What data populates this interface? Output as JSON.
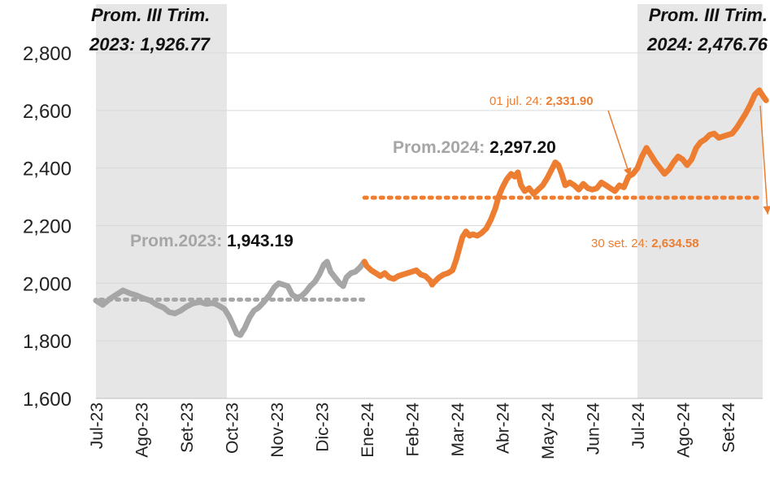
{
  "chart_data": {
    "type": "line",
    "title": "",
    "xlabel": "",
    "ylabel": "",
    "ylim": [
      1600,
      2800
    ],
    "yticks": [
      "1,600",
      "1,800",
      "2,000",
      "2,200",
      "2,400",
      "2,600",
      "2,800"
    ],
    "ytick_values": [
      1600,
      1800,
      2000,
      2200,
      2400,
      2600,
      2800
    ],
    "categories": [
      "Jul-23",
      "Ago-23",
      "Set-23",
      "Oct-23",
      "Nov-23",
      "Dic-23",
      "Ene-24",
      "Feb-24",
      "Mar-24",
      "Abr-24",
      "May-24",
      "Jun-24",
      "Jul-24",
      "Ago-24",
      "Set-24"
    ],
    "colors": {
      "s2023": "#a6a6a6",
      "s2024": "#ed7d31",
      "band": "#e6e6e6",
      "grid": "#d9d9d9"
    },
    "series": [
      {
        "name": "2023",
        "color": "#a6a6a6",
        "points": [
          [
            0.0,
            1940
          ],
          [
            0.15,
            1925
          ],
          [
            0.3,
            1945
          ],
          [
            0.45,
            1960
          ],
          [
            0.6,
            1975
          ],
          [
            0.75,
            1965
          ],
          [
            0.9,
            1958
          ],
          [
            1.05,
            1948
          ],
          [
            1.2,
            1940
          ],
          [
            1.35,
            1925
          ],
          [
            1.5,
            1915
          ],
          [
            1.62,
            1900
          ],
          [
            1.75,
            1895
          ],
          [
            1.88,
            1905
          ],
          [
            2.0,
            1918
          ],
          [
            2.15,
            1930
          ],
          [
            2.3,
            1935
          ],
          [
            2.45,
            1928
          ],
          [
            2.6,
            1932
          ],
          [
            2.75,
            1920
          ],
          [
            2.85,
            1910
          ],
          [
            2.95,
            1885
          ],
          [
            3.05,
            1850
          ],
          [
            3.12,
            1825
          ],
          [
            3.2,
            1820
          ],
          [
            3.3,
            1845
          ],
          [
            3.4,
            1880
          ],
          [
            3.5,
            1905
          ],
          [
            3.6,
            1915
          ],
          [
            3.72,
            1935
          ],
          [
            3.85,
            1960
          ],
          [
            3.95,
            1985
          ],
          [
            4.05,
            2000
          ],
          [
            4.15,
            1995
          ],
          [
            4.25,
            1990
          ],
          [
            4.35,
            1960
          ],
          [
            4.45,
            1950
          ],
          [
            4.55,
            1955
          ],
          [
            4.65,
            1970
          ],
          [
            4.75,
            1990
          ],
          [
            4.85,
            2005
          ],
          [
            4.95,
            2030
          ],
          [
            5.05,
            2065
          ],
          [
            5.12,
            2075
          ],
          [
            5.2,
            2040
          ],
          [
            5.3,
            2020
          ],
          [
            5.4,
            2000
          ],
          [
            5.48,
            1990
          ],
          [
            5.55,
            2020
          ],
          [
            5.65,
            2035
          ],
          [
            5.75,
            2040
          ],
          [
            5.85,
            2055
          ],
          [
            5.95,
            2075
          ]
        ]
      },
      {
        "name": "2024",
        "color": "#ed7d31",
        "points": [
          [
            5.95,
            2075
          ],
          [
            6.0,
            2060
          ],
          [
            6.1,
            2045
          ],
          [
            6.2,
            2035
          ],
          [
            6.3,
            2025
          ],
          [
            6.4,
            2035
          ],
          [
            6.5,
            2020
          ],
          [
            6.6,
            2015
          ],
          [
            6.7,
            2025
          ],
          [
            6.8,
            2030
          ],
          [
            6.9,
            2035
          ],
          [
            7.0,
            2040
          ],
          [
            7.1,
            2045
          ],
          [
            7.2,
            2030
          ],
          [
            7.3,
            2025
          ],
          [
            7.4,
            2010
          ],
          [
            7.45,
            1995
          ],
          [
            7.5,
            2005
          ],
          [
            7.6,
            2020
          ],
          [
            7.7,
            2030
          ],
          [
            7.8,
            2035
          ],
          [
            7.9,
            2045
          ],
          [
            7.98,
            2080
          ],
          [
            8.05,
            2120
          ],
          [
            8.12,
            2160
          ],
          [
            8.2,
            2180
          ],
          [
            8.28,
            2165
          ],
          [
            8.35,
            2170
          ],
          [
            8.45,
            2165
          ],
          [
            8.55,
            2175
          ],
          [
            8.65,
            2190
          ],
          [
            8.75,
            2220
          ],
          [
            8.85,
            2260
          ],
          [
            8.92,
            2300
          ],
          [
            9.0,
            2330
          ],
          [
            9.1,
            2360
          ],
          [
            9.2,
            2380
          ],
          [
            9.28,
            2370
          ],
          [
            9.35,
            2385
          ],
          [
            9.42,
            2340
          ],
          [
            9.5,
            2320
          ],
          [
            9.6,
            2330
          ],
          [
            9.7,
            2310
          ],
          [
            9.8,
            2325
          ],
          [
            9.9,
            2340
          ],
          [
            10.0,
            2365
          ],
          [
            10.1,
            2395
          ],
          [
            10.18,
            2420
          ],
          [
            10.25,
            2410
          ],
          [
            10.32,
            2380
          ],
          [
            10.4,
            2340
          ],
          [
            10.5,
            2350
          ],
          [
            10.6,
            2340
          ],
          [
            10.7,
            2325
          ],
          [
            10.8,
            2345
          ],
          [
            10.9,
            2330
          ],
          [
            11.0,
            2325
          ],
          [
            11.1,
            2330
          ],
          [
            11.2,
            2350
          ],
          [
            11.3,
            2340
          ],
          [
            11.4,
            2330
          ],
          [
            11.5,
            2320
          ],
          [
            11.6,
            2340
          ],
          [
            11.7,
            2333
          ],
          [
            11.8,
            2370
          ],
          [
            11.9,
            2380
          ],
          [
            12.0,
            2400
          ],
          [
            12.1,
            2440
          ],
          [
            12.2,
            2470
          ],
          [
            12.3,
            2445
          ],
          [
            12.4,
            2420
          ],
          [
            12.5,
            2400
          ],
          [
            12.6,
            2380
          ],
          [
            12.7,
            2395
          ],
          [
            12.8,
            2420
          ],
          [
            12.9,
            2440
          ],
          [
            13.0,
            2430
          ],
          [
            13.1,
            2410
          ],
          [
            13.2,
            2430
          ],
          [
            13.3,
            2470
          ],
          [
            13.4,
            2490
          ],
          [
            13.5,
            2500
          ],
          [
            13.6,
            2515
          ],
          [
            13.7,
            2520
          ],
          [
            13.8,
            2505
          ],
          [
            13.9,
            2510
          ],
          [
            14.0,
            2515
          ],
          [
            14.1,
            2520
          ],
          [
            14.2,
            2540
          ],
          [
            14.3,
            2565
          ],
          [
            14.4,
            2590
          ],
          [
            14.5,
            2620
          ],
          [
            14.6,
            2655
          ],
          [
            14.7,
            2670
          ],
          [
            14.78,
            2650
          ],
          [
            14.85,
            2635
          ]
        ]
      }
    ],
    "averages": [
      {
        "label": "Prom.2023: ",
        "value_text": "1,943.19",
        "value": 1943.19,
        "from": 0.1,
        "to": 5.95
      },
      {
        "label": "Prom.2024: ",
        "value_text": "2,297.20",
        "value": 2297.2,
        "from": 5.95,
        "to": 15.2
      }
    ],
    "quarter_bands": [
      {
        "from": 0,
        "to": 2.9,
        "line1": "Prom. III Trim.",
        "line2": "2023: 1,926.77"
      },
      {
        "from": 12,
        "to": 15.2,
        "line1": "Prom. III Trim.",
        "line2": "2024: 2,476.76"
      }
    ],
    "annotations": [
      {
        "label": "01 jul. 24: ",
        "value_text": "2,331.90",
        "x": 11.8,
        "y": 2331.9
      },
      {
        "label": "30 set. 24: ",
        "value_text": "2,634.58",
        "x": 14.85,
        "y": 2634.58
      }
    ]
  }
}
